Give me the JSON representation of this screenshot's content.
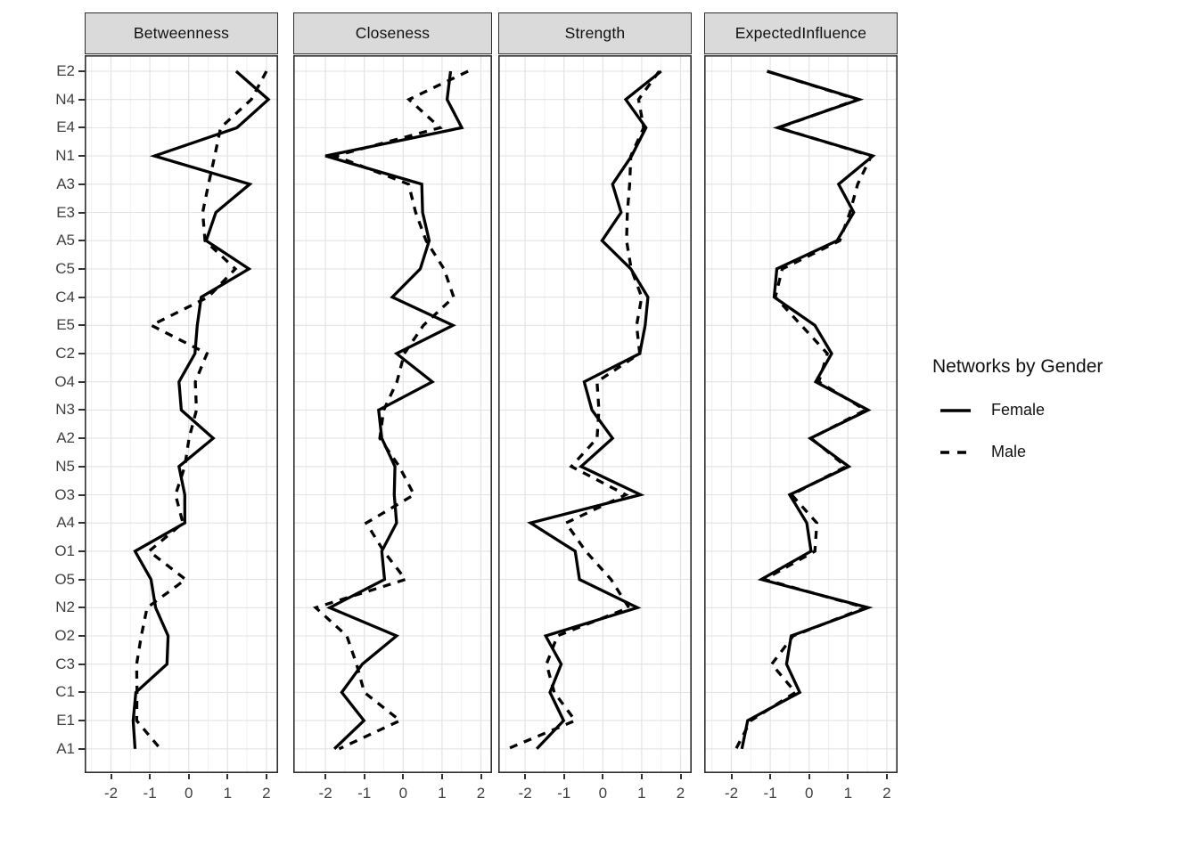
{
  "figure": {
    "background": "#ffffff"
  },
  "legend": {
    "title": "Networks by Gender",
    "items": [
      {
        "label": "Female",
        "linestyle": "solid"
      },
      {
        "label": "Male",
        "linestyle": "dashed"
      }
    ]
  },
  "style": {
    "line_color": "#000000",
    "strip_background": "#dadada",
    "panel_border": "#2e2e2e",
    "grid_major": "#e3e3e3",
    "grid_minor": "#f0f0f0",
    "axis_text": "#404040",
    "tick_mark": "#333333"
  },
  "chart_data": {
    "type": "line",
    "orientation": "horizontal",
    "title": "",
    "xlabel": "",
    "ylabel": "",
    "grid": true,
    "legend_position": "right",
    "xlim": [
      -2.67,
      2.29
    ],
    "x_ticks": [
      -2,
      -1,
      0,
      1,
      2
    ],
    "x_minor": [
      -2.5,
      -1.5,
      -0.5,
      0.5,
      1.5
    ],
    "categories": [
      "E2",
      "N4",
      "E4",
      "N1",
      "A3",
      "E3",
      "A5",
      "C5",
      "C4",
      "E5",
      "C2",
      "O4",
      "N3",
      "A2",
      "N5",
      "O3",
      "A4",
      "O1",
      "O5",
      "N2",
      "O2",
      "C3",
      "C1",
      "E1",
      "A1"
    ],
    "panels": [
      {
        "title": "Betweenness",
        "series": [
          {
            "name": "Female",
            "style": "solid",
            "values": [
              1.22,
              2.05,
              1.24,
              -0.88,
              1.57,
              0.7,
              0.45,
              1.55,
              0.32,
              0.22,
              0.16,
              -0.25,
              -0.19,
              0.63,
              -0.25,
              -0.1,
              -0.1,
              -1.38,
              -0.97,
              -0.85,
              -0.53,
              -0.56,
              -1.36,
              -1.43,
              -1.38
            ]
          },
          {
            "name": "Male",
            "style": "dashed",
            "values": [
              2.0,
              1.61,
              0.82,
              0.67,
              0.51,
              0.36,
              0.42,
              1.2,
              0.5,
              -0.96,
              0.47,
              0.17,
              0.2,
              0.01,
              -0.1,
              -0.34,
              -0.15,
              -1.02,
              -0.08,
              -1.07,
              -1.22,
              -1.34,
              -1.33,
              -1.34,
              -0.73
            ]
          }
        ]
      },
      {
        "title": "Closeness",
        "series": [
          {
            "name": "Female",
            "style": "solid",
            "values": [
              1.22,
              1.13,
              1.51,
              -2.0,
              0.48,
              0.5,
              0.67,
              0.44,
              -0.28,
              1.28,
              -0.17,
              0.75,
              -0.63,
              -0.55,
              -0.21,
              -0.23,
              -0.17,
              -0.55,
              -0.48,
              -1.89,
              -0.17,
              -1.05,
              -1.58,
              -1.01,
              -1.77
            ]
          },
          {
            "name": "Male",
            "style": "dashed",
            "values": [
              1.67,
              0.15,
              0.95,
              -1.75,
              0.14,
              0.32,
              0.59,
              1.05,
              1.3,
              0.52,
              0.03,
              -0.16,
              -0.5,
              -0.6,
              -0.1,
              0.28,
              -0.95,
              -0.5,
              0.06,
              -2.25,
              -1.45,
              -1.2,
              -1.0,
              -0.08,
              -1.65
            ]
          }
        ]
      },
      {
        "title": "Strength",
        "series": [
          {
            "name": "Female",
            "style": "solid",
            "values": [
              1.5,
              0.59,
              1.11,
              0.74,
              0.25,
              0.47,
              -0.02,
              0.72,
              1.16,
              1.09,
              0.95,
              -0.48,
              -0.28,
              0.25,
              -0.56,
              0.97,
              -1.86,
              -0.71,
              -0.6,
              0.89,
              -1.47,
              -1.07,
              -1.36,
              -1.01,
              -1.7
            ]
          },
          {
            "name": "Male",
            "style": "dashed",
            "values": [
              1.45,
              0.92,
              1.05,
              0.72,
              0.69,
              0.63,
              0.61,
              0.73,
              1.0,
              0.87,
              0.95,
              -0.15,
              -0.1,
              -0.15,
              -0.81,
              0.59,
              -0.95,
              -0.44,
              0.21,
              0.67,
              -1.17,
              -1.45,
              -1.25,
              -0.71,
              -2.45
            ]
          }
        ]
      },
      {
        "title": "ExpectedInfluence",
        "series": [
          {
            "name": "Female",
            "style": "solid",
            "values": [
              -1.08,
              1.29,
              -0.81,
              1.64,
              0.76,
              1.15,
              0.72,
              -0.83,
              -0.9,
              0.15,
              0.58,
              0.17,
              1.52,
              0.03,
              1.02,
              -0.5,
              -0.06,
              0.05,
              -1.23,
              1.52,
              -0.46,
              -0.58,
              -0.24,
              -1.58,
              -1.73
            ]
          },
          {
            "name": "Male",
            "style": "dashed",
            "values": [
              -1.08,
              1.25,
              -0.78,
              1.6,
              1.25,
              1.05,
              0.79,
              -0.69,
              -0.87,
              -0.2,
              0.47,
              0.25,
              1.45,
              0.05,
              0.95,
              -0.45,
              0.2,
              0.15,
              -1.15,
              1.45,
              -0.41,
              -0.96,
              -0.35,
              -1.5,
              -1.88
            ]
          }
        ]
      }
    ]
  }
}
